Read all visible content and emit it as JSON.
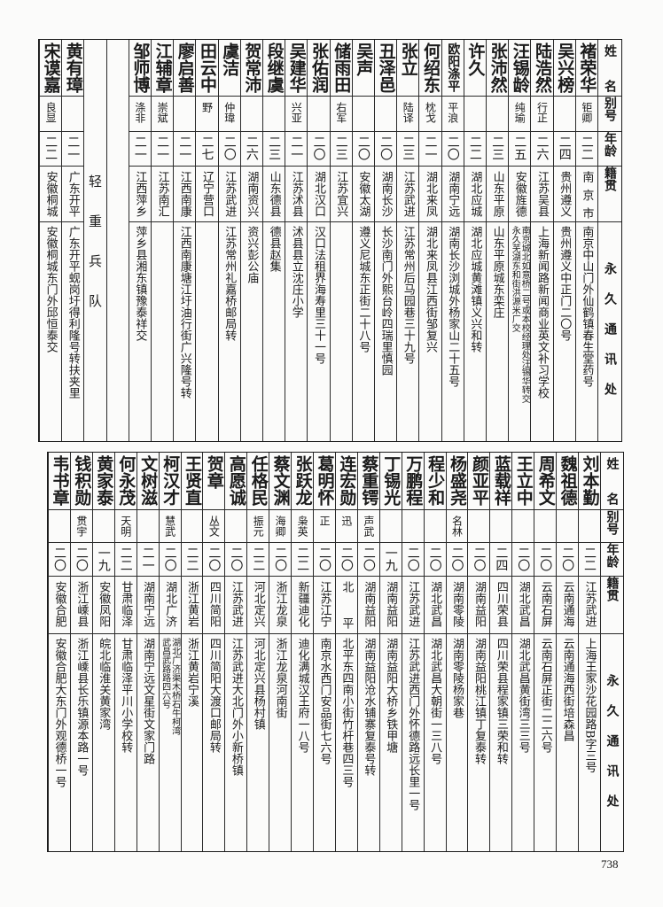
{
  "headers": {
    "name": "姓名",
    "alias": "别号",
    "age": "年龄",
    "native": "籍贯",
    "address": "永久通讯处"
  },
  "tables": [
    {
      "columns": [
        {
          "type": "person",
          "name": "褚荣华",
          "alias": "钜卿",
          "age": "二二",
          "native": "南京市",
          "address": "南京中山门外仙鹤镇春生堂药号"
        },
        {
          "type": "person",
          "name": "吴兴榜",
          "alias": "",
          "age": "二四",
          "native": "贵州遵义",
          "address": "贵州遵义中正门二〇号"
        },
        {
          "type": "person",
          "name": "陆浩然",
          "alias": "行正",
          "age": "二六",
          "native": "江苏吴县",
          "address": "上海新闻路新闻商业英文补习学校"
        },
        {
          "type": "person",
          "name": "汪锡龄",
          "alias": "纯瑜",
          "age": "二五",
          "native": "安徽旌德",
          "address": "南京城北如意桥二号或本校经理处汪锡华转交",
          "address2": "永久芜湖东和街洪源米厂交"
        },
        {
          "type": "person",
          "name": "张沛然",
          "alias": "",
          "age": "二三",
          "native": "山东平原",
          "address": "山东平原城东栾庄"
        },
        {
          "type": "person",
          "name": "许久",
          "alias": "",
          "age": "二二",
          "native": "湖北应城",
          "address": "湖北应城黄滩镇义兴和转"
        },
        {
          "type": "person",
          "name": "欧阳涤平",
          "alias": "平浪",
          "age": "二〇",
          "native": "湖南宁远",
          "address": "湖南长沙浏城外杨家山二十五号"
        },
        {
          "type": "person",
          "name": "何绍东",
          "alias": "枕戈",
          "age": "二一",
          "native": "湖北来凤",
          "address": "湖北来凤县江西街邹复兴"
        },
        {
          "type": "person",
          "name": "张立",
          "alias": "陆译",
          "age": "二三",
          "native": "江苏武进",
          "address": "江苏常州后马园巷三十九号"
        },
        {
          "type": "person",
          "name": "丑泽邑",
          "alias": "",
          "age": "二〇",
          "native": "湖南长沙",
          "address": "长沙南门外熙台岭四瑞里慎园"
        },
        {
          "type": "person",
          "name": "吴声",
          "alias": "",
          "age": "二〇",
          "native": "安徽太湖",
          "address": "遵义尼城东正街二十八号"
        },
        {
          "type": "person",
          "name": "储雨田",
          "alias": "右军",
          "age": "二三",
          "native": "江苏宜兴",
          "address": ""
        },
        {
          "type": "person",
          "name": "张佑润",
          "alias": "",
          "age": "二〇",
          "native": "湖北汉口",
          "address": "汉口法租界海寿里三十一号"
        },
        {
          "type": "person",
          "name": "吴建华",
          "alias": "兴亚",
          "age": "二一",
          "native": "江苏沭县",
          "address": "沭县县立沈庄小学"
        },
        {
          "type": "person",
          "name": "段继虞",
          "alias": "",
          "age": "二三",
          "native": "山东德县",
          "address": "德县赵集"
        },
        {
          "type": "person",
          "name": "贺常沛",
          "alias": "",
          "age": "二六",
          "native": "湖南资兴",
          "address": "资兴彭公庙"
        },
        {
          "type": "person",
          "name": "虞洁",
          "alias": "仲瑋",
          "age": "二〇",
          "native": "江苏武进",
          "address": "江苏常州礼嘉桥邮局转"
        },
        {
          "type": "person",
          "name": "田云中",
          "alias": "野",
          "age": "二七",
          "native": "辽宁营口",
          "address": ""
        },
        {
          "type": "person",
          "name": "廖启善",
          "alias": "",
          "age": "二一",
          "native": "江西南康",
          "address": "江西南康塘江圩油行街广兴隆号转"
        },
        {
          "type": "person",
          "name": "江辅章",
          "alias": "崇斌",
          "age": "二一",
          "native": "江苏南汇",
          "address": ""
        },
        {
          "type": "person",
          "name": "邹师博",
          "alias": "涤非",
          "age": "二一",
          "native": "江西萍乡",
          "address": "萍乡县湘东镇豫泰祥交"
        },
        {
          "type": "blank"
        },
        {
          "type": "section",
          "label": "轻重兵队"
        },
        {
          "type": "person",
          "name": "黄有璋",
          "alias": "",
          "age": "二一",
          "native": "广东开平",
          "address": "广东开平蚬岗圩得利隆号转扶夹里"
        },
        {
          "type": "person",
          "name": "宋谟嘉",
          "alias": "良显",
          "age": "二二",
          "native": "安徽桐城",
          "address": "安徽桐城东门外邱恒泰交"
        }
      ]
    },
    {
      "columns": [
        {
          "type": "person",
          "name": "刘本勤",
          "alias": "",
          "age": "二二",
          "native": "江苏武进",
          "address": "上海王家沙花园路B字三号"
        },
        {
          "type": "person",
          "name": "魏祖德",
          "alias": "",
          "age": "二〇",
          "native": "云南通海",
          "address": "云南通海西街培森昌"
        },
        {
          "type": "person",
          "name": "周希文",
          "alias": "",
          "age": "二〇",
          "native": "云南石屏",
          "address": "云南石屏正街二二六号"
        },
        {
          "type": "person",
          "name": "王立中",
          "alias": "",
          "age": "二〇",
          "native": "湖北武昌",
          "address": "湖北武昌黄街湾三三号"
        },
        {
          "type": "person",
          "name": "蓝载祥",
          "alias": "",
          "age": "二四",
          "native": "四川荣县",
          "address": "四川荣县程家镇三荣和转"
        },
        {
          "type": "person",
          "name": "颜亚平",
          "alias": "",
          "age": "二〇",
          "native": "湖南益阳",
          "address": "湖南益阳桃江镇丁复泰转"
        },
        {
          "type": "person",
          "name": "杨盛尧",
          "alias": "名林",
          "age": "二〇",
          "native": "湖南零陵",
          "address": "湖南零陵杨家巷"
        },
        {
          "type": "person",
          "name": "程少和",
          "alias": "",
          "age": "二〇",
          "native": "湖北武昌",
          "address": "湖北武昌大朝街一三八号"
        },
        {
          "type": "person",
          "name": "万鹏程",
          "alias": "",
          "age": "二〇",
          "native": "江苏武进",
          "address": "江苏武进西门外怀德路远长里一号"
        },
        {
          "type": "person",
          "name": "丁锡光",
          "alias": "",
          "age": "一九",
          "native": "湖南益阳",
          "address": "湖南益阳大桥乡铁甲塘"
        },
        {
          "type": "person",
          "name": "蔡重锷",
          "alias": "声武",
          "age": "二〇",
          "native": "湖南益阳",
          "address": "湖南益阳沧水铺寨复泰号转"
        },
        {
          "type": "person",
          "name": "连宏勋",
          "alias": "迅",
          "age": "二〇",
          "native": "北平",
          "address": "北平东四南小街竹杆巷四三号"
        },
        {
          "type": "person",
          "name": "葛明怀",
          "alias": "正",
          "age": "二〇",
          "native": "江苏江宁",
          "address": "南京水西门安品街七六号"
        },
        {
          "type": "person",
          "name": "张跃龙",
          "alias": "枭英",
          "age": "二二",
          "native": "新疆迪化",
          "address": "迪化满城汉王府一八号"
        },
        {
          "type": "person",
          "name": "蔡文渊",
          "alias": "海卿",
          "age": "二〇",
          "native": "浙江龙泉",
          "address": "浙江龙泉河南街"
        },
        {
          "type": "person",
          "name": "任格民",
          "alias": "振元",
          "age": "二二",
          "native": "河北定兴",
          "address": "河北定兴县杨村镇"
        },
        {
          "type": "person",
          "name": "高愿诚",
          "alias": "",
          "age": "二〇",
          "native": "江苏武进",
          "address": "江苏武进大北门外小新桥镇"
        },
        {
          "type": "person",
          "name": "贺章",
          "alias": "丛文",
          "age": "二〇",
          "native": "四川简阳",
          "address": "四川简阳大渡口邮局转"
        },
        {
          "type": "person",
          "name": "王贤直",
          "alias": "",
          "age": "二二",
          "native": "浙江黄岩",
          "address": "浙江黄岩宁溪"
        },
        {
          "type": "person",
          "name": "柯汉才",
          "alias": "慧武",
          "age": "二〇",
          "native": "湖北广济",
          "address": "湖北广济渠木桥石牛柯湾",
          "address2": "武昌武路路四六号"
        },
        {
          "type": "person",
          "name": "文树滋",
          "alias": "",
          "age": "二一",
          "native": "湖南宁远",
          "address": "湖南宁远文星街文家门路"
        },
        {
          "type": "person",
          "name": "何永茂",
          "alias": "天明",
          "age": "二二",
          "native": "甘肃临泽",
          "address": "甘肃临泽平川小学校转"
        },
        {
          "type": "person",
          "name": "黄家泰",
          "alias": "",
          "age": "一九",
          "native": "安徽凤阳",
          "address": "皖北临淮关黄家湾"
        },
        {
          "type": "person",
          "name": "钱积勋",
          "alias": "贯宇",
          "age": "二〇",
          "native": "浙江嵊县",
          "address": "浙江嵊县长乐镇源本路一号"
        },
        {
          "type": "person",
          "name": "韦书章",
          "alias": "",
          "age": "二〇",
          "native": "安徽合肥",
          "address": "安徽合肥大东门外观德桥一号"
        }
      ]
    }
  ],
  "page_number": "738"
}
